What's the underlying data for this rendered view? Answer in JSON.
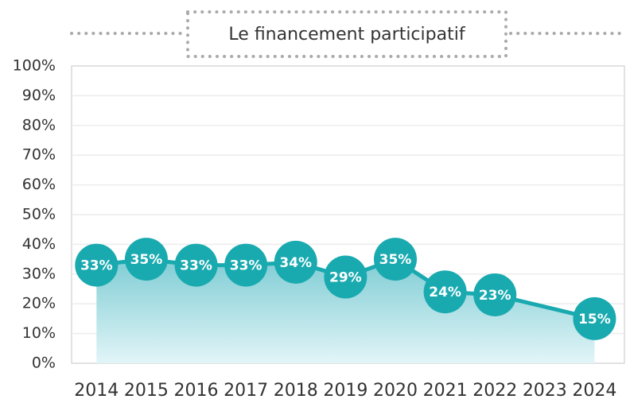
{
  "chart_data": {
    "type": "line",
    "title": "Le financement participatif",
    "x": [
      2014,
      2015,
      2016,
      2017,
      2018,
      2019,
      2020,
      2021,
      2022,
      2024
    ],
    "series": [
      {
        "color": "#19aab0",
        "values": [
          33,
          35,
          33,
          33,
          34,
          29,
          35,
          24,
          23,
          15
        ],
        "value_labels": [
          "33%",
          "35%",
          "33%",
          "33%",
          "34%",
          "29%",
          "35%",
          "24%",
          "23%",
          "15%"
        ]
      }
    ],
    "xlim": [
      2013.5,
      2024.6
    ],
    "xticks": [
      2014,
      2015,
      2016,
      2017,
      2018,
      2019,
      2020,
      2021,
      2022,
      2023,
      2024
    ],
    "ylim": [
      0,
      100
    ],
    "yticks": [
      {
        "value": 0,
        "label": "0%"
      },
      {
        "value": 10,
        "label": "10%"
      },
      {
        "value": 20,
        "label": "20%"
      },
      {
        "value": 30,
        "label": "30%"
      },
      {
        "value": 40,
        "label": "40%"
      },
      {
        "value": 50,
        "label": "50%"
      },
      {
        "value": 60,
        "label": "60%"
      },
      {
        "value": 70,
        "label": "70%"
      },
      {
        "value": 80,
        "label": "80%"
      },
      {
        "value": 90,
        "label": "90%"
      },
      {
        "value": 100,
        "label": "100%"
      }
    ],
    "grid": true
  }
}
